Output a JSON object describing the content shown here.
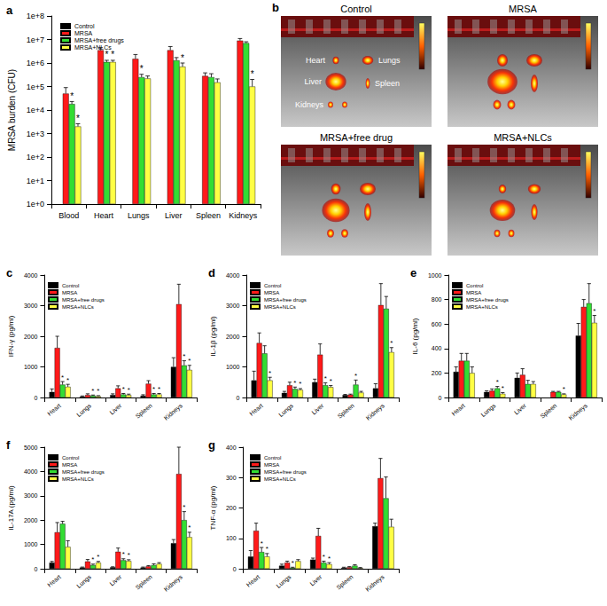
{
  "chart_data": [
    {
      "panel": "a",
      "type": "bar",
      "ylabel": "MRSA burden (CFU)",
      "categories": [
        "Blood",
        "Heart",
        "Lungs",
        "Liver",
        "Spleen",
        "Kidneys"
      ],
      "log": "y",
      "ylim": [
        1,
        100000000
      ],
      "yticks": [
        {
          "value": 1,
          "label": "1e+0"
        },
        {
          "value": 10,
          "label": "1e+1"
        },
        {
          "value": 100,
          "label": "1e+2"
        },
        {
          "value": 1000,
          "label": "1e+3"
        },
        {
          "value": 10000,
          "label": "1e+4"
        },
        {
          "value": 100000,
          "label": "1e+5"
        },
        {
          "value": 1000000,
          "label": "1e+6"
        },
        {
          "value": 10000000,
          "label": "1e+7"
        },
        {
          "value": 100000000,
          "label": "1e+8"
        }
      ],
      "grid": false,
      "legend": "upper left",
      "series": [
        {
          "name": "Control",
          "color": "#000000",
          "values": [
            null,
            null,
            null,
            null,
            null,
            null
          ],
          "errors": [
            null,
            null,
            null,
            null,
            null,
            null
          ],
          "significance": [
            null,
            null,
            null,
            null,
            null,
            null
          ]
        },
        {
          "name": "MRSA",
          "color": "#ff1a1a",
          "values": [
            50000,
            3500000,
            1500000,
            3500000,
            280000,
            9000000
          ],
          "errors": [
            40000,
            1000000,
            800000,
            1500000,
            100000,
            2000000
          ],
          "significance": [
            null,
            null,
            null,
            null,
            null,
            null
          ]
        },
        {
          "name": "MRSA+free drugs",
          "color": "#33dd33",
          "values": [
            18000,
            1100000,
            250000,
            1300000,
            250000,
            7000000
          ],
          "errors": [
            5000,
            200000,
            80000,
            400000,
            100000,
            1000000
          ],
          "significance": [
            "*",
            "*",
            "*",
            null,
            null,
            null
          ]
        },
        {
          "name": "MRSA+NLCs",
          "color": "#ffff44",
          "values": [
            2000,
            1100000,
            220000,
            700000,
            150000,
            100000
          ],
          "errors": [
            600,
            200000,
            60000,
            300000,
            60000,
            100000
          ],
          "significance": [
            "*",
            "*",
            null,
            "*",
            null,
            "*"
          ]
        }
      ]
    },
    {
      "panel": "c",
      "type": "bar",
      "ylabel": "IFN-γ (pg/ml)",
      "categories": [
        "Heart",
        "Lungs",
        "Liver",
        "Spleen",
        "Kidneys"
      ],
      "ylim": [
        0,
        4000
      ],
      "yticks": [
        0,
        1000,
        2000,
        3000,
        4000
      ],
      "grid": false,
      "legend": "upper left",
      "series": [
        {
          "name": "Control",
          "color": "#000000",
          "values": [
            180,
            30,
            80,
            60,
            1000
          ],
          "errors": [
            100,
            20,
            40,
            30,
            300
          ],
          "significance": [
            null,
            null,
            null,
            null,
            null
          ]
        },
        {
          "name": "MRSA",
          "color": "#ff1a1a",
          "values": [
            1620,
            80,
            300,
            450,
            3050
          ],
          "errors": [
            380,
            40,
            80,
            100,
            650
          ],
          "significance": [
            null,
            null,
            null,
            null,
            null
          ]
        },
        {
          "name": "MRSA+free drugs",
          "color": "#33dd33",
          "values": [
            420,
            60,
            100,
            100,
            1050
          ],
          "errors": [
            100,
            20,
            30,
            30,
            150
          ],
          "significance": [
            "*",
            "*",
            "*",
            "*",
            "*"
          ]
        },
        {
          "name": "MRSA+NLCs",
          "color": "#ffff44",
          "values": [
            350,
            40,
            80,
            100,
            900
          ],
          "errors": [
            80,
            20,
            30,
            30,
            150
          ],
          "significance": [
            "*",
            "*",
            "*",
            "*",
            "*"
          ]
        }
      ]
    },
    {
      "panel": "d",
      "type": "bar",
      "ylabel": "IL-1β (pg/ml)",
      "categories": [
        "Heart",
        "Lungs",
        "Liver",
        "Spleen",
        "Kidneys"
      ],
      "ylim": [
        0,
        4000
      ],
      "yticks": [
        0,
        1000,
        2000,
        3000,
        4000
      ],
      "grid": false,
      "legend": "upper left",
      "series": [
        {
          "name": "Control",
          "color": "#000000",
          "values": [
            560,
            150,
            500,
            80,
            300
          ],
          "errors": [
            300,
            50,
            100,
            20,
            150
          ],
          "significance": [
            null,
            null,
            null,
            null,
            null
          ]
        },
        {
          "name": "MRSA",
          "color": "#ff1a1a",
          "values": [
            1780,
            400,
            1400,
            90,
            3020
          ],
          "errors": [
            330,
            100,
            350,
            20,
            700
          ],
          "significance": [
            null,
            null,
            null,
            null,
            null
          ]
        },
        {
          "name": "MRSA+free drugs",
          "color": "#33dd33",
          "values": [
            1440,
            280,
            400,
            420,
            2900
          ],
          "errors": [
            250,
            60,
            80,
            150,
            400
          ],
          "significance": [
            null,
            "*",
            "*",
            "*",
            null
          ]
        },
        {
          "name": "MRSA+NLCs",
          "color": "#ffff44",
          "values": [
            560,
            250,
            340,
            160,
            1480
          ],
          "errors": [
            100,
            40,
            50,
            40,
            150
          ],
          "significance": [
            "*",
            "*",
            "*",
            null,
            "*"
          ]
        }
      ]
    },
    {
      "panel": "e",
      "type": "bar",
      "ylabel": "IL-6 (pg/ml)",
      "categories": [
        "Heart",
        "Lungs",
        "Liver",
        "Spleen",
        "Kidneys"
      ],
      "ylim": [
        0,
        1000
      ],
      "yticks": [
        0,
        200,
        400,
        600,
        800,
        1000
      ],
      "grid": false,
      "legend": "upper left",
      "series": [
        {
          "name": "Control",
          "color": "#000000",
          "values": [
            210,
            45,
            160,
            null,
            505
          ],
          "errors": [
            40,
            10,
            40,
            null,
            100
          ],
          "significance": [
            null,
            null,
            null,
            null,
            null
          ]
        },
        {
          "name": "MRSA",
          "color": "#ff1a1a",
          "values": [
            300,
            55,
            185,
            45,
            740
          ],
          "errors": [
            60,
            15,
            50,
            5,
            60
          ],
          "significance": [
            null,
            null,
            null,
            null,
            null
          ]
        },
        {
          "name": "MRSA+free drugs",
          "color": "#33dd33",
          "values": [
            300,
            75,
            110,
            45,
            770
          ],
          "errors": [
            60,
            15,
            30,
            5,
            160
          ],
          "significance": [
            null,
            "*",
            null,
            null,
            null
          ]
        },
        {
          "name": "MRSA+NLCs",
          "color": "#ffff44",
          "values": [
            200,
            30,
            110,
            25,
            610
          ],
          "errors": [
            50,
            10,
            20,
            5,
            60
          ],
          "significance": [
            null,
            "*",
            null,
            "*",
            "*"
          ]
        }
      ]
    },
    {
      "panel": "f",
      "type": "bar",
      "ylabel": "IL-17A (pg/ml)",
      "categories": [
        "Heart",
        "Lungs",
        "Liver",
        "Spleen",
        "Kidneys"
      ],
      "ylim": [
        0,
        5000
      ],
      "yticks": [
        0,
        1000,
        2000,
        3000,
        4000,
        5000
      ],
      "grid": false,
      "legend": "upper left",
      "series": [
        {
          "name": "Control",
          "color": "#000000",
          "values": [
            250,
            50,
            60,
            50,
            1050
          ],
          "errors": [
            50,
            20,
            20,
            20,
            150
          ],
          "significance": [
            null,
            null,
            null,
            null,
            null
          ]
        },
        {
          "name": "MRSA",
          "color": "#ff1a1a",
          "values": [
            1500,
            300,
            700,
            100,
            3900
          ],
          "errors": [
            400,
            80,
            150,
            30,
            1100
          ],
          "significance": [
            null,
            null,
            null,
            null,
            null
          ]
        },
        {
          "name": "MRSA+free drugs",
          "color": "#33dd33",
          "values": [
            1850,
            150,
            350,
            150,
            2000
          ],
          "errors": [
            100,
            40,
            60,
            50,
            350
          ],
          "significance": [
            null,
            "*",
            "*",
            null,
            "*"
          ]
        },
        {
          "name": "MRSA+NLCs",
          "color": "#ffff44",
          "values": [
            900,
            250,
            320,
            200,
            1300
          ],
          "errors": [
            250,
            50,
            50,
            50,
            200
          ],
          "significance": [
            null,
            "*",
            "*",
            null,
            "*"
          ]
        }
      ]
    },
    {
      "panel": "g",
      "type": "bar",
      "ylabel": "TNF-α (pg/ml)",
      "categories": [
        "Heart",
        "Lungs",
        "Liver",
        "Spleen",
        "Kidneys"
      ],
      "ylim": [
        0,
        400
      ],
      "yticks": [
        0,
        100,
        200,
        300,
        400
      ],
      "grid": false,
      "legend": "upper left",
      "series": [
        {
          "name": "Control",
          "color": "#000000",
          "values": [
            40,
            10,
            30,
            3,
            140
          ],
          "errors": [
            20,
            5,
            5,
            2,
            10
          ],
          "significance": [
            null,
            null,
            null,
            null,
            null
          ]
        },
        {
          "name": "MRSA",
          "color": "#ff1a1a",
          "values": [
            125,
            20,
            108,
            5,
            298
          ],
          "errors": [
            25,
            5,
            25,
            2,
            65
          ],
          "significance": [
            null,
            null,
            null,
            null,
            null
          ]
        },
        {
          "name": "MRSA+free drugs",
          "color": "#33dd33",
          "values": [
            55,
            3,
            20,
            10,
            232
          ],
          "errors": [
            15,
            2,
            5,
            3,
            70
          ],
          "significance": [
            "*",
            "*",
            "*",
            null,
            null
          ]
        },
        {
          "name": "MRSA+NLCs",
          "color": "#ffff44",
          "values": [
            40,
            25,
            15,
            2,
            138
          ],
          "errors": [
            10,
            5,
            5,
            2,
            25
          ],
          "significance": [
            "*",
            null,
            "*",
            null,
            null
          ]
        }
      ]
    }
  ],
  "panel_b": {
    "panel": "b",
    "images": [
      "Control",
      "MRSA",
      "MRSA+free drug",
      "MRSA+NLCs"
    ],
    "organ_labels": [
      "Heart",
      "Lungs",
      "Liver",
      "Spleen",
      "Kidneys"
    ]
  }
}
